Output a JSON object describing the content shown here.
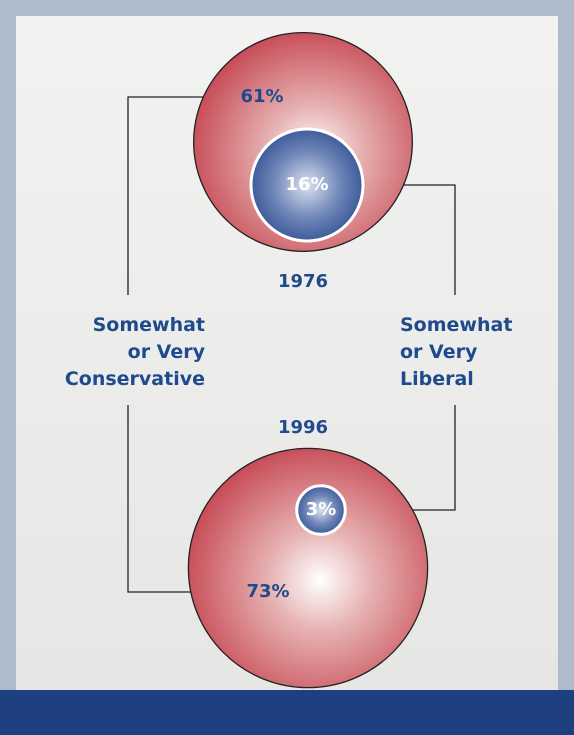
{
  "chart_data": {
    "type": "bubble",
    "categories": [
      "1976",
      "1996"
    ],
    "series": [
      {
        "name": "Somewhat\nor Very\nConservative",
        "color": "#c4434f",
        "values": [
          61,
          73
        ],
        "value_labels": [
          "61%",
          "73%"
        ]
      },
      {
        "name": "Somewhat\nor Very\nLiberal",
        "color": "#26478c",
        "values": [
          16,
          3
        ],
        "value_labels": [
          "16%",
          "3%"
        ]
      }
    ]
  }
}
